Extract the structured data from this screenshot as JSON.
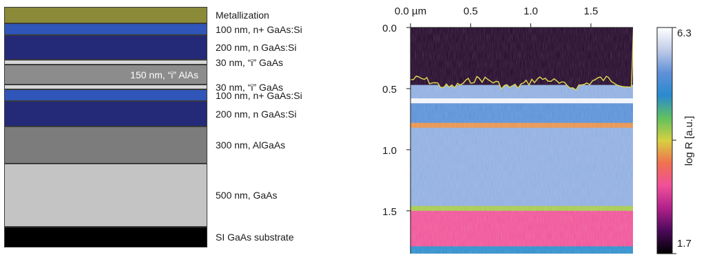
{
  "layers": [
    {
      "outer_label": "Metallization",
      "inner_label": "",
      "color": "#8a8a38",
      "thickness": 24
    },
    {
      "outer_label": "100 nm, n+ GaAs:Si",
      "inner_label": "",
      "color": "#2f56b8",
      "thickness": 17
    },
    {
      "outer_label": "200 nm, n GaAs:Si",
      "inner_label": "",
      "color": "#242a78",
      "thickness": 36
    },
    {
      "outer_label": "30 nm, “i” GaAs",
      "inner_label": "",
      "color": "#d6d6d6",
      "thickness": 7
    },
    {
      "outer_label": "",
      "inner_label": "150 nm, “i” AlAs",
      "color": "#8c8c8c",
      "thickness": 29
    },
    {
      "outer_label": "30 nm, “i” GaAs",
      "inner_label": "",
      "color": "#d6d6d6",
      "thickness": 7
    },
    {
      "outer_label": "100 nm, n+ GaAs:Si",
      "inner_label": "",
      "color": "#2f56b8",
      "thickness": 17
    },
    {
      "outer_label": "200 nm, n GaAs:Si",
      "inner_label": "",
      "color": "#242a78",
      "thickness": 37
    },
    {
      "outer_label": "300 nm, AlGaAs",
      "inner_label": "",
      "color": "#7c7c7c",
      "thickness": 54
    },
    {
      "outer_label": "500 nm, GaAs",
      "inner_label": "",
      "color": "#c4c4c4",
      "thickness": 92
    },
    {
      "outer_label": "SI GaAs substrate",
      "inner_label": "",
      "color": "#000000",
      "thickness": 30
    }
  ],
  "chart_data": {
    "type": "heatmap",
    "x_ticks": [
      {
        "value": 0.0,
        "label": "0.0 µm"
      },
      {
        "value": 0.5,
        "label": "0.5"
      },
      {
        "value": 1.0,
        "label": "1.0"
      },
      {
        "value": 1.5,
        "label": "1.5"
      }
    ],
    "xlim": [
      0.0,
      1.85
    ],
    "y_ticks": [
      {
        "value": 0.0,
        "label": "0.0"
      },
      {
        "value": 0.5,
        "label": "0.5"
      },
      {
        "value": 1.0,
        "label": "1.0"
      },
      {
        "value": 1.5,
        "label": "1.5"
      }
    ],
    "ylim": [
      0.0,
      1.85
    ],
    "y_inverted": true,
    "colorbar": {
      "label": "log R [a.u.]",
      "min": 1.7,
      "max": 6.3,
      "min_label": "1.7",
      "max_label": "6.3",
      "colormap": [
        "#000000",
        "#4a0a5a",
        "#b0208a",
        "#f0509a",
        "#f07050",
        "#d8d040",
        "#60c060",
        "#2a8ad0",
        "#6090d8",
        "#c0cce8",
        "#ffffff"
      ]
    },
    "bands": [
      {
        "y_start": 0.0,
        "y_end": 0.47,
        "log_r": 1.9
      },
      {
        "y_start": 0.47,
        "y_end": 0.58,
        "log_r": 5.6
      },
      {
        "y_start": 0.58,
        "y_end": 0.62,
        "log_r": 6.2
      },
      {
        "y_start": 0.62,
        "y_end": 0.78,
        "log_r": 5.3
      },
      {
        "y_start": 0.78,
        "y_end": 0.82,
        "log_r": 3.7
      },
      {
        "y_start": 0.82,
        "y_end": 1.46,
        "log_r": 5.6
      },
      {
        "y_start": 1.46,
        "y_end": 1.5,
        "log_r": 4.2
      },
      {
        "y_start": 1.5,
        "y_end": 1.79,
        "log_r": 3.1
      },
      {
        "y_start": 1.79,
        "y_end": 1.85,
        "log_r": 4.9
      }
    ]
  }
}
